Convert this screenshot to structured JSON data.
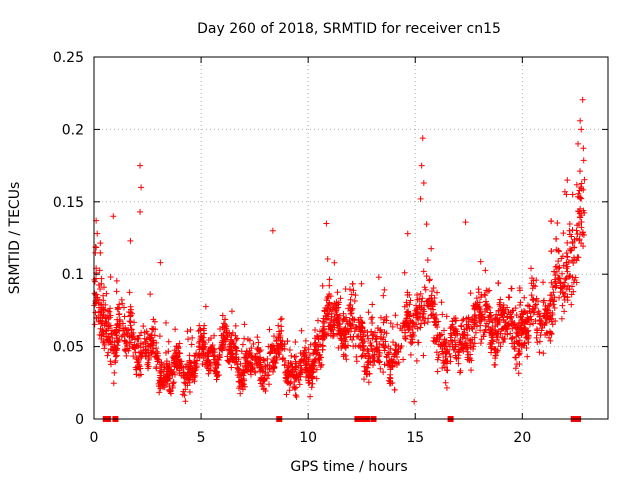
{
  "chart_data": {
    "type": "scatter",
    "title": "Day 260 of 2018, SRMTID for receiver cn15",
    "xlabel": "GPS time / hours",
    "ylabel": "SRMTID / TECUs",
    "xlim": [
      0,
      24
    ],
    "ylim": [
      0,
      0.25
    ],
    "x_ticks": [
      0,
      5,
      10,
      15,
      20
    ],
    "x_tick_labels": [
      "0",
      "5",
      "10",
      "15",
      "20"
    ],
    "y_ticks": [
      0,
      0.05,
      0.1,
      0.15,
      0.2,
      0.25
    ],
    "y_tick_labels": [
      "0",
      "0.05",
      "0.1",
      "0.15",
      "0.2",
      "0.25"
    ],
    "grid": true,
    "marker": "plus",
    "series_color": "#ff0000",
    "envelope_note": "approximate; dense point cloud sampled along this trend",
    "trend": {
      "x": [
        0,
        0.3,
        0.6,
        1,
        1.5,
        2,
        2.5,
        3,
        3.5,
        4,
        4.5,
        5,
        5.5,
        6,
        6.5,
        7,
        7.5,
        8,
        8.5,
        9,
        9.5,
        10,
        10.5,
        11,
        11.5,
        12,
        12.5,
        13,
        13.5,
        14,
        14.5,
        15,
        15.5,
        16,
        16.5,
        17,
        17.5,
        18,
        18.5,
        19,
        19.5,
        20,
        20.5,
        21,
        21.5,
        22,
        22.5,
        22.9
      ],
      "y": [
        0.085,
        0.07,
        0.06,
        0.062,
        0.058,
        0.055,
        0.045,
        0.04,
        0.033,
        0.032,
        0.036,
        0.042,
        0.047,
        0.05,
        0.045,
        0.037,
        0.033,
        0.04,
        0.046,
        0.04,
        0.033,
        0.03,
        0.055,
        0.065,
        0.07,
        0.062,
        0.055,
        0.05,
        0.045,
        0.048,
        0.055,
        0.075,
        0.082,
        0.06,
        0.05,
        0.05,
        0.06,
        0.07,
        0.068,
        0.062,
        0.06,
        0.068,
        0.065,
        0.07,
        0.085,
        0.1,
        0.12,
        0.14
      ]
    },
    "spread": {
      "x": [
        0,
        2,
        4,
        8,
        10,
        11,
        14,
        15.3,
        16,
        18,
        21,
        22,
        22.9
      ],
      "y": [
        0.02,
        0.016,
        0.011,
        0.012,
        0.012,
        0.016,
        0.016,
        0.022,
        0.018,
        0.016,
        0.018,
        0.026,
        0.03
      ]
    },
    "outliers": [
      {
        "x": 0.1,
        "y": 0.137
      },
      {
        "x": 0.15,
        "y": 0.128
      },
      {
        "x": 0.9,
        "y": 0.14
      },
      {
        "x": 1.7,
        "y": 0.123
      },
      {
        "x": 2.15,
        "y": 0.175
      },
      {
        "x": 2.2,
        "y": 0.16
      },
      {
        "x": 2.15,
        "y": 0.143
      },
      {
        "x": 3.1,
        "y": 0.108
      },
      {
        "x": 8.35,
        "y": 0.13
      },
      {
        "x": 10.85,
        "y": 0.135
      },
      {
        "x": 15.35,
        "y": 0.194
      },
      {
        "x": 15.3,
        "y": 0.175
      },
      {
        "x": 15.4,
        "y": 0.163
      },
      {
        "x": 15.25,
        "y": 0.152
      },
      {
        "x": 14.65,
        "y": 0.128
      },
      {
        "x": 14.95,
        "y": 0.012
      },
      {
        "x": 17.35,
        "y": 0.136
      },
      {
        "x": 22.7,
        "y": 0.206
      },
      {
        "x": 22.75,
        "y": 0.2
      },
      {
        "x": 22.6,
        "y": 0.19
      },
      {
        "x": 22.35,
        "y": 0.155
      },
      {
        "x": 22.1,
        "y": 0.165
      },
      {
        "x": 22.2,
        "y": 0.13
      },
      {
        "x": 22.85,
        "y": 0.187
      }
    ],
    "baseline_markers_x": [
      0.55,
      0.65,
      1.0,
      8.65,
      12.3,
      12.55,
      12.75,
      13.05,
      16.65,
      22.4,
      22.5,
      22.6
    ]
  }
}
